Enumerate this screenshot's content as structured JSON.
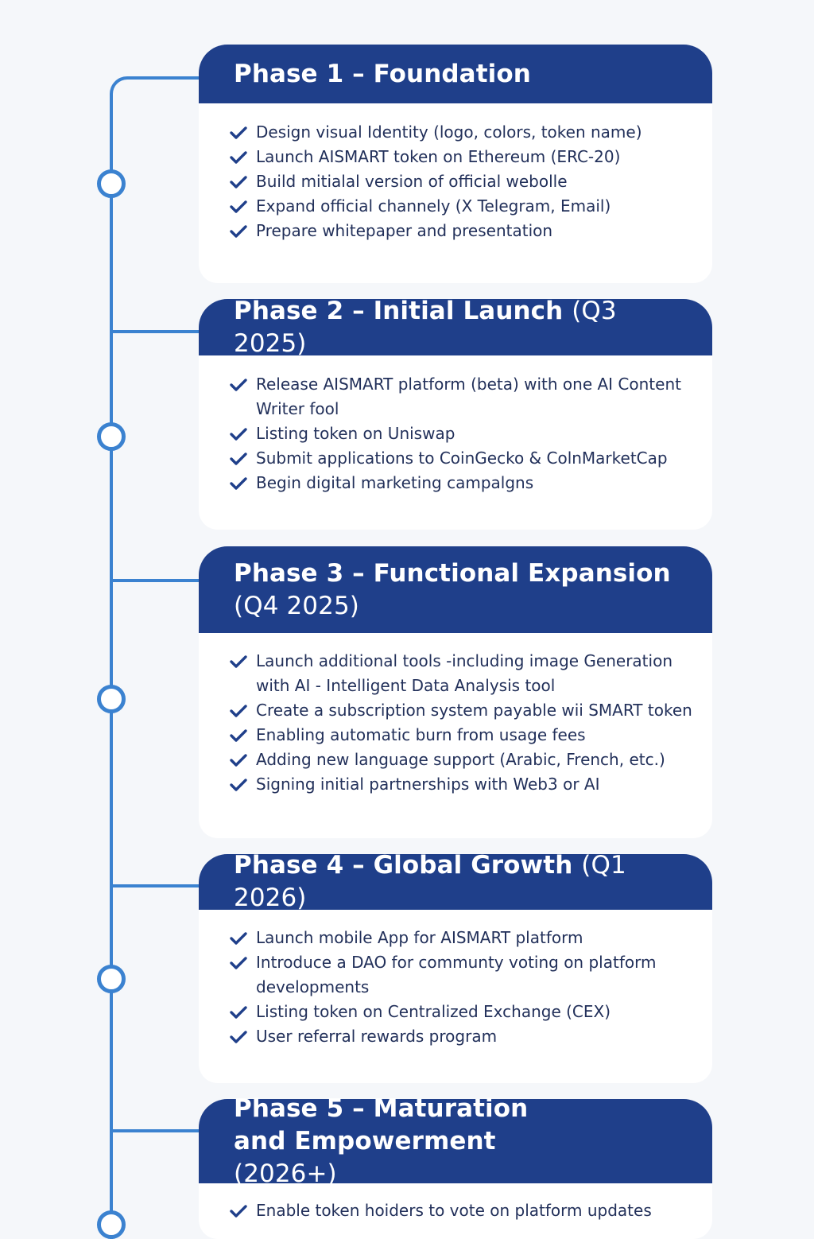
{
  "phases": [
    {
      "title": "Phase 1 – Foundation",
      "period": "",
      "items": [
        "Design visual Identity (logo, colors, token name)",
        "Launch AISMART token on Ethereum (ERC-20)",
        "Build mitialal version of official webolle",
        "Expand official channely (X  Telegram, Email)",
        "Prepare whitepaper and presentation"
      ]
    },
    {
      "title": "Phase 2 – Initial Launch",
      "period": "(Q3 2025)",
      "items": [
        "Release AISMART platform (beta) with one AI Content Writer fool",
        "Listing token on Uniswap",
        "Submit applications to CoinGecko & ColnMarketCap",
        "Begin digital marketing campalgns"
      ]
    },
    {
      "title": "Phase 3 – Functional Expansion",
      "period": "(Q4 2025)",
      "items": [
        "Launch additional tools -including image Generation with AI - Intelligent Data Analysis tool",
        "Create a subscription system payable wii SMART token",
        "Enabling automatic burn from usage fees",
        "Adding new language support (Arabic, French, etc.)",
        "Signing initial partnerships with Web3 or AI"
      ]
    },
    {
      "title": "Phase 4 – Global Growth",
      "period": "(Q1 2026)",
      "items": [
        "Launch mobile App for AISMART platform",
        "Introduce a DAO for communty voting on platform developments",
        "Listing token on Centralized Exchange (CEX)",
        "User referral rewards program"
      ]
    },
    {
      "title": "Phase 5 – Maturation and Empowerment",
      "period": "(2026+)",
      "items": [
        "Enable token hoiders to vote on platform updates"
      ]
    }
  ],
  "colors": {
    "header_bg": "#1f3f8a",
    "timeline": "#3b82d0",
    "check": "#1f3f8a",
    "text": "#22305a"
  },
  "icons": {
    "bullet": "check-icon",
    "node": "timeline-node"
  }
}
